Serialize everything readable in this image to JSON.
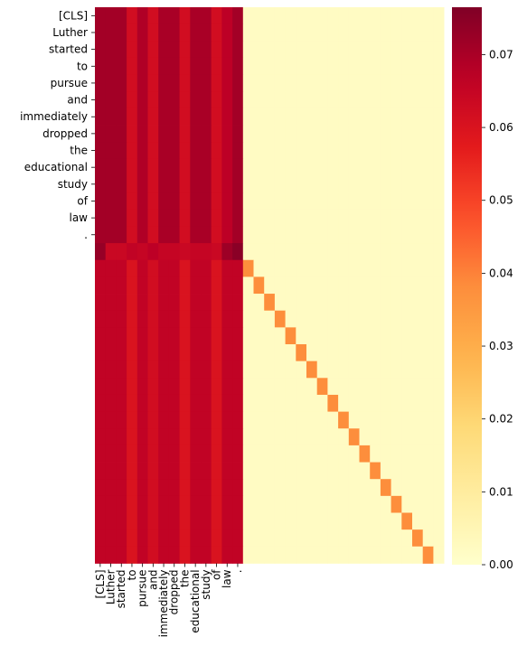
{
  "chart_data": {
    "type": "heatmap",
    "title": "",
    "xlabel": "",
    "ylabel": "",
    "y_tick_labels": [
      "[CLS]",
      "Luther",
      "started",
      "to",
      "pursue",
      "and",
      "immediately",
      "dropped",
      "the",
      "educational",
      "study",
      "of",
      "law",
      "."
    ],
    "x_tick_labels": [
      "[CLS]",
      "Luther",
      "started",
      "to",
      "pursue",
      "and",
      "immediately",
      "dropped",
      "the",
      "educational",
      "study",
      "of",
      "law",
      "."
    ],
    "n_rows": 33,
    "n_cols": 33,
    "colormap": "YlOrRd",
    "colorbar": {
      "vmin": 0.0,
      "vmax": 0.0765,
      "ticks": [
        "0.00",
        "0.01",
        "0.02",
        "0.03",
        "0.04",
        "0.05",
        "0.06",
        "0.07"
      ]
    },
    "row_groups": {
      "top_rows_0_to_13": [
        0.071,
        0.071,
        0.071,
        0.062,
        0.069,
        0.062,
        0.07,
        0.07,
        0.062,
        0.07,
        0.07,
        0.062,
        0.067,
        0.071
      ],
      "row_14": [
        0.073,
        0.064,
        0.064,
        0.066,
        0.065,
        0.067,
        0.065,
        0.065,
        0.064,
        0.065,
        0.065,
        0.064,
        0.072,
        0.075
      ],
      "bottom_rows_15_to_32": [
        0.066,
        0.066,
        0.066,
        0.06,
        0.066,
        0.062,
        0.066,
        0.066,
        0.06,
        0.066,
        0.066,
        0.06,
        0.066,
        0.066
      ]
    },
    "remaining_columns_value": 0.002,
    "diagonal_value": 0.038,
    "diagonal_description": "rows 15-32 have an elevated value in column (row index + 1) for columns 14-32"
  }
}
